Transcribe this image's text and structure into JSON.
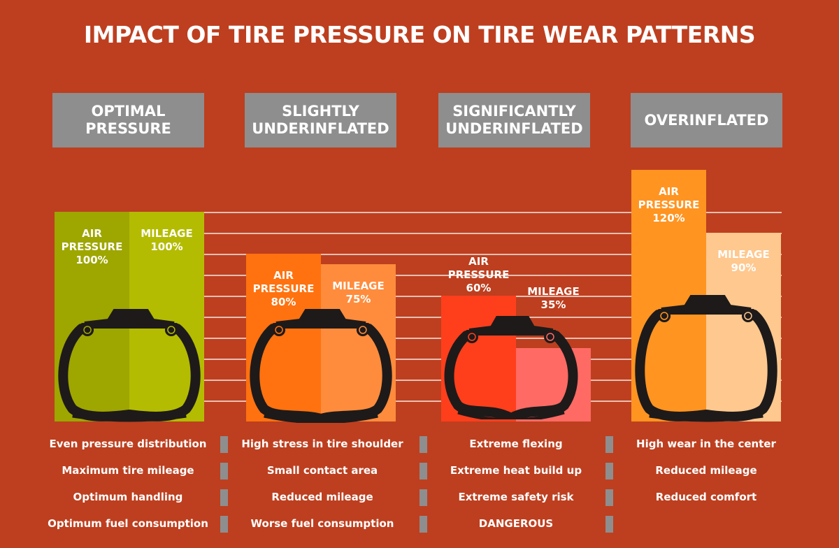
{
  "title": "IMPACT OF TIRE PRESSURE ON TIRE WEAR PATTERNS",
  "chart_data": {
    "type": "bar",
    "title": "IMPACT OF TIRE PRESSURE ON TIRE WEAR PATTERNS",
    "categories": [
      "OPTIMAL PRESSURE",
      "SLIGHTLY UNDERINFLATED",
      "SIGNIFICANTLY UNDERINFLATED",
      "OVERINFLATED"
    ],
    "series": [
      {
        "name": "AIR PRESSURE",
        "values": [
          100,
          80,
          60,
          120
        ],
        "labels": [
          "100%",
          "80%",
          "60%",
          "120%"
        ],
        "colors": [
          "#9ea600",
          "#ff720f",
          "#ff3f1c",
          "#ff9421"
        ]
      },
      {
        "name": "MILEAGE",
        "values": [
          100,
          75,
          35,
          90
        ],
        "labels": [
          "100%",
          "75%",
          "35%",
          "90%"
        ],
        "colors": [
          "#b3bc00",
          "#ff8c3c",
          "#ff6a64",
          "#ffc88e"
        ]
      }
    ],
    "ylim": [
      0,
      120
    ],
    "grid": true,
    "legend": "none"
  },
  "series_labels": {
    "air_line1": "AIR",
    "air_line2": "PRESSURE",
    "mileage": "MILEAGE"
  },
  "columns": [
    {
      "header_line1": "OPTIMAL",
      "header_line2": "PRESSURE",
      "bullets": [
        "Even pressure distribution",
        "Maximum tire mileage",
        "Optimum handling",
        "Optimum fuel consumption"
      ]
    },
    {
      "header_line1": "SLIGHTLY",
      "header_line2": "UNDERINFLATED",
      "bullets": [
        "High stress in tire shoulder",
        "Small contact area",
        "Reduced mileage",
        "Worse fuel consumption"
      ]
    },
    {
      "header_line1": "SIGNIFICANTLY",
      "header_line2": "UNDERINFLATED",
      "bullets": [
        "Extreme flexing",
        "Extreme heat build up",
        "Extreme safety risk",
        "DANGEROUS"
      ]
    },
    {
      "header_line1": "OVERINFLATED",
      "header_line2": "",
      "bullets": [
        "High wear in the center",
        "Reduced mileage",
        "Reduced comfort"
      ]
    }
  ],
  "colors": {
    "background": "#bd3f1f",
    "header": "#8e8e8e",
    "tire": "#1e1a1a"
  }
}
